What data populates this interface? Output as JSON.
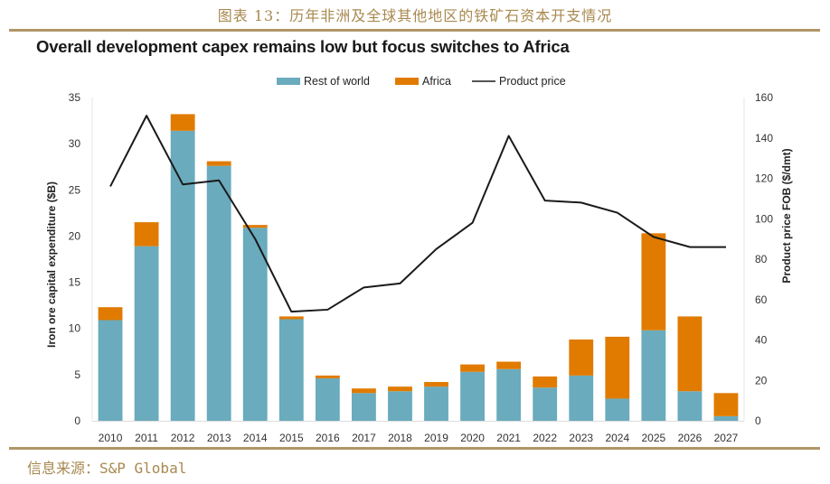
{
  "figure": {
    "caption": "图表 13：历年非洲及全球其他地区的铁矿石资本开支情况",
    "source": "信息来源：S&P Global"
  },
  "colors": {
    "rest_of_world": "#6aabbd",
    "africa": "#e07b00",
    "price": "#1a1a1a",
    "accent_rule": "#b09566"
  },
  "chart_data": {
    "type": "bar",
    "stacked": true,
    "title": "Overall development capex remains low but focus switches to Africa",
    "categories": [
      "2010",
      "2011",
      "2012",
      "2013",
      "2014",
      "2015",
      "2016",
      "2017",
      "2018",
      "2019",
      "2020",
      "2021",
      "2022",
      "2023",
      "2024",
      "2025",
      "2026",
      "2027"
    ],
    "series": [
      {
        "name": "Rest of world",
        "type": "bar",
        "axis": "left",
        "values": [
          10.9,
          18.9,
          31.4,
          27.6,
          20.9,
          11.0,
          4.6,
          3.0,
          3.2,
          3.7,
          5.3,
          5.6,
          3.6,
          4.9,
          2.4,
          9.8,
          3.2,
          0.5
        ]
      },
      {
        "name": "Africa",
        "type": "bar",
        "axis": "left",
        "values": [
          1.4,
          2.6,
          1.8,
          0.5,
          0.3,
          0.3,
          0.3,
          0.5,
          0.5,
          0.5,
          0.8,
          0.8,
          1.2,
          3.9,
          6.7,
          10.5,
          8.1,
          2.5
        ]
      },
      {
        "name": "Product price",
        "type": "line",
        "axis": "right",
        "values": [
          116,
          151,
          117,
          119,
          90,
          54,
          55,
          66,
          68,
          85,
          98,
          141,
          109,
          108,
          103,
          91,
          86,
          86
        ]
      }
    ],
    "ylabel": "Iron ore capital expenditure ($B)",
    "y2label": "Product price FOB ($/dmt)",
    "xlabel": "",
    "ylim": [
      0,
      35
    ],
    "y2lim": [
      0,
      160
    ],
    "yticks": [
      "0",
      "5",
      "10",
      "15",
      "20",
      "25",
      "30",
      "35"
    ],
    "y2ticks": [
      "0",
      "20",
      "40",
      "60",
      "80",
      "100",
      "120",
      "140",
      "160"
    ],
    "grid": false,
    "legend_position": "top-center",
    "legend": [
      "Rest of world",
      "Africa",
      "Product price"
    ]
  }
}
